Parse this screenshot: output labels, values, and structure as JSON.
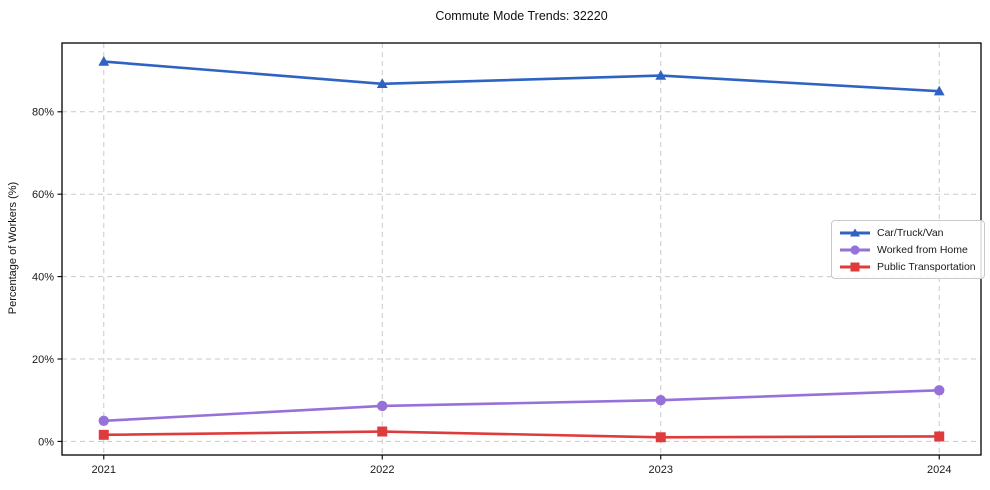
{
  "figure": {
    "background": "#ffffff",
    "frame_color": "#000000",
    "grid_color": "#c9c9c9",
    "tick_label_color": "#1a1a1a"
  },
  "chart_data": {
    "type": "line",
    "title": "Commute Mode Trends: 32220",
    "xlabel": "",
    "ylabel": "Percentage of Workers (%)",
    "x": [
      2021,
      2022,
      2023,
      2024
    ],
    "x_tick_labels": [
      "2021",
      "2022",
      "2023",
      "2024"
    ],
    "y_ticks": [
      0,
      20,
      40,
      60,
      80
    ],
    "y_tick_labels": [
      "0%",
      "20%",
      "40%",
      "60%",
      "80%"
    ],
    "xlim": [
      2020.85,
      2024.15
    ],
    "ylim": [
      -3.3,
      96.7
    ],
    "grid": "dashed",
    "legend_position": "center-right",
    "series": [
      {
        "name": "Car/Truck/Van",
        "color": "#2f63c2",
        "marker": "triangle",
        "values": [
          92.2,
          86.8,
          88.8,
          85.0
        ]
      },
      {
        "name": "Worked from Home",
        "color": "#9671d9",
        "marker": "circle",
        "values": [
          5.0,
          8.6,
          10.0,
          12.4
        ]
      },
      {
        "name": "Public Transportation",
        "color": "#de3c3c",
        "marker": "square",
        "values": [
          1.6,
          2.4,
          1.0,
          1.2
        ]
      }
    ]
  }
}
